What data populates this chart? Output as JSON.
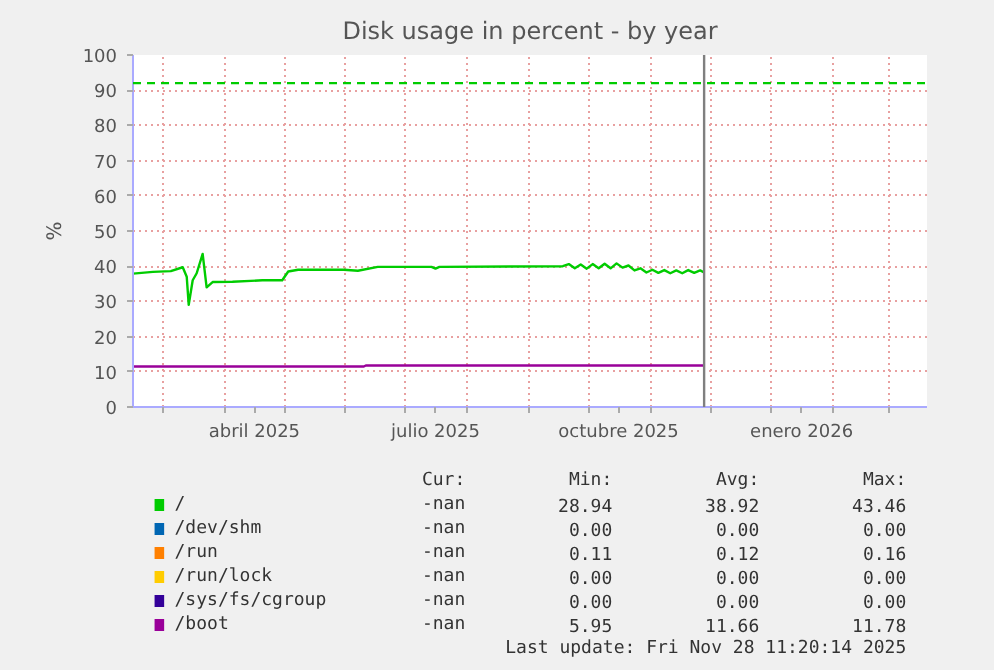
{
  "chart_data": {
    "type": "line",
    "title": "Disk usage in percent - by year",
    "ylabel": "%",
    "x": [
      "2025-02-14",
      "2025-02-24",
      "2025-03-05",
      "2025-03-11",
      "2025-03-13",
      "2025-03-14",
      "2025-03-16",
      "2025-03-18",
      "2025-03-21",
      "2025-03-23",
      "2025-03-26",
      "2025-04-05",
      "2025-04-20",
      "2025-04-30",
      "2025-05-03",
      "2025-05-08",
      "2025-05-31",
      "2025-06-07",
      "2025-06-17",
      "2025-07-14",
      "2025-07-16",
      "2025-07-18",
      "2025-09-18",
      "2025-09-21",
      "2025-09-24",
      "2025-09-27",
      "2025-09-30",
      "2025-10-03",
      "2025-10-06",
      "2025-10-09",
      "2025-10-12",
      "2025-10-15",
      "2025-10-18",
      "2025-10-21",
      "2025-10-24",
      "2025-10-27",
      "2025-10-30",
      "2025-11-02",
      "2025-11-05",
      "2025-11-08",
      "2025-11-11",
      "2025-11-14",
      "2025-11-17",
      "2025-11-20",
      "2025-11-23",
      "2025-11-26",
      "2025-11-28"
    ],
    "series": [
      {
        "name": "/",
        "color": "#00cc00",
        "values": [
          37.9,
          38.4,
          38.6,
          39.7,
          37,
          29,
          36,
          38,
          43.5,
          34,
          35.5,
          35.6,
          36,
          36,
          38.5,
          39,
          39,
          38.7,
          39.8,
          39.8,
          39.3,
          39.8,
          40,
          40.6,
          39.4,
          40.5,
          39.3,
          40.6,
          39.4,
          40.7,
          39.4,
          40.8,
          39.6,
          40.2,
          38.8,
          39.4,
          38.2,
          39,
          38.1,
          38.9,
          38,
          38.8,
          38,
          38.9,
          38.1,
          38.8,
          38.2
        ]
      },
      {
        "name": "/dev/shm",
        "color": "#0066b3",
        "values": [
          null,
          null,
          null,
          null,
          null,
          null,
          null,
          null,
          null,
          null,
          null,
          null,
          null,
          null,
          null,
          null,
          null,
          null,
          null,
          null,
          null,
          null,
          null,
          null,
          null,
          null,
          null,
          null,
          null,
          null,
          null,
          null,
          null,
          null,
          null,
          null,
          null,
          null,
          null,
          null,
          null,
          null,
          null,
          null,
          null,
          null,
          null
        ]
      },
      {
        "name": "/run",
        "color": "#ff8000",
        "values": [
          null,
          null,
          null,
          null,
          null,
          null,
          null,
          null,
          null,
          null,
          null,
          null,
          null,
          null,
          null,
          null,
          null,
          null,
          null,
          null,
          null,
          null,
          null,
          null,
          null,
          null,
          null,
          null,
          null,
          null,
          null,
          null,
          null,
          null,
          null,
          null,
          null,
          null,
          null,
          null,
          null,
          null,
          null,
          null,
          null,
          null,
          null
        ]
      },
      {
        "name": "/run/lock",
        "color": "#ffcc00",
        "values": [
          null,
          null,
          null,
          null,
          null,
          null,
          null,
          null,
          null,
          null,
          null,
          null,
          null,
          null,
          null,
          null,
          null,
          null,
          null,
          null,
          null,
          null,
          null,
          null,
          null,
          null,
          null,
          null,
          null,
          null,
          null,
          null,
          null,
          null,
          null,
          null,
          null,
          null,
          null,
          null,
          null,
          null,
          null,
          null,
          null,
          null,
          null
        ]
      },
      {
        "name": "/sys/fs/cgroup",
        "color": "#330099",
        "values": [
          null,
          null,
          null,
          null,
          null,
          null,
          null,
          null,
          null,
          null,
          null,
          null,
          null,
          null,
          null,
          null,
          null,
          null,
          null,
          null,
          null,
          null,
          null,
          null,
          null,
          null,
          null,
          null,
          null,
          null,
          null,
          null,
          null,
          null,
          null,
          null,
          null,
          null,
          null,
          null,
          null,
          null,
          null,
          null,
          null,
          null,
          null
        ]
      },
      {
        "name": "/boot",
        "color": "#990099",
        "x": [
          "2025-02-14",
          "2025-06-10",
          "2025-06-11",
          "2025-11-28"
        ],
        "values": [
          11.5,
          11.5,
          11.8,
          11.8
        ]
      }
    ],
    "xlim": [
      "2025-02-14",
      "2026-03-20"
    ],
    "xticks": [
      {
        "value": "2025-03-01",
        "label": null
      },
      {
        "value": "2025-04-01",
        "label": null
      },
      {
        "value": "2025-05-01",
        "label": null
      },
      {
        "value": "2025-06-01",
        "label": null
      },
      {
        "value": "2025-07-01",
        "label": null
      },
      {
        "value": "2025-08-01",
        "label": null
      },
      {
        "value": "2025-09-01",
        "label": null
      },
      {
        "value": "2025-10-01",
        "label": null
      },
      {
        "value": "2025-11-01",
        "label": null
      },
      {
        "value": "2025-12-01",
        "label": null
      },
      {
        "value": "2026-01-01",
        "label": null
      },
      {
        "value": "2026-02-01",
        "label": null
      },
      {
        "value": "2026-03-01",
        "label": null
      },
      {
        "value": "2025-04-16",
        "label": "abril 2025"
      },
      {
        "value": "2025-07-16",
        "label": "julio 2025"
      },
      {
        "value": "2025-10-16",
        "label": "octubre 2025"
      },
      {
        "value": "2026-01-16",
        "label": "enero 2026"
      }
    ],
    "ylim": [
      0,
      100
    ],
    "yticks": [
      0,
      10,
      20,
      30,
      40,
      50,
      60,
      70,
      80,
      90,
      100
    ],
    "ref_lines": [
      {
        "axis": "y",
        "value": 92,
        "color": "#00cc00",
        "line_style": "dashed"
      },
      {
        "axis": "x",
        "value": "2025-11-28",
        "color": "#7f7f7f"
      }
    ],
    "grid": true,
    "legend": "bottom",
    "annotations": [
      "Cur:",
      "Min:",
      "Avg:",
      "Max:",
      "-nan",
      "28.94",
      "38.92",
      "43.46",
      "-nan",
      "0.00",
      "0.00",
      "0.00",
      "-nan",
      "0.11",
      "0.12",
      "0.16",
      "-nan",
      "0.00",
      "0.00",
      "0.00",
      "-nan",
      "0.00",
      "0.00",
      "0.00",
      "-nan",
      "5.95",
      "11.66",
      "11.78",
      "Last update: Fri Nov 28 11:20:14 2025"
    ]
  }
}
